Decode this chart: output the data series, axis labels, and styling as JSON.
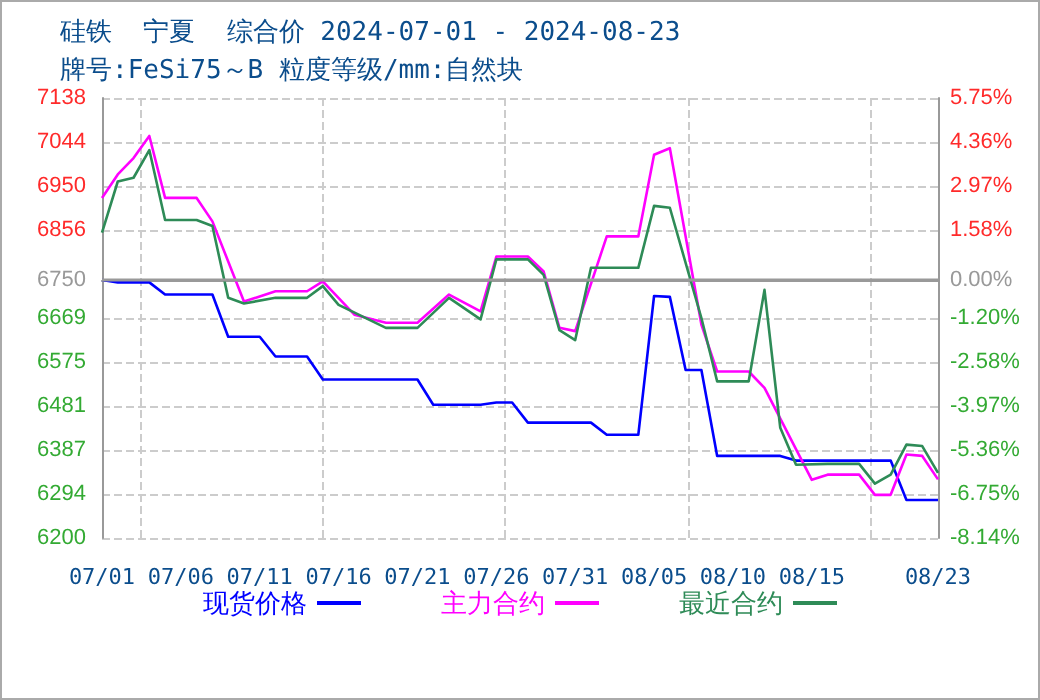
{
  "chart_data": {
    "type": "line",
    "title": "硅铁  宁夏  综合价 2024-07-01 - 2024-08-23",
    "subtitle": "牌号:FeSi75～B 粒度等级/mm:自然块",
    "xlim": [
      "2024-07-01",
      "2024-08-23"
    ],
    "xticks": [
      {
        "value": "2024-07-01",
        "label": "07/01"
      },
      {
        "value": "2024-07-06",
        "label": "07/06"
      },
      {
        "value": "2024-07-11",
        "label": "07/11"
      },
      {
        "value": "2024-07-16",
        "label": "07/16"
      },
      {
        "value": "2024-07-21",
        "label": "07/21"
      },
      {
        "value": "2024-07-26",
        "label": "07/26"
      },
      {
        "value": "2024-07-31",
        "label": "07/31"
      },
      {
        "value": "2024-08-05",
        "label": "08/05"
      },
      {
        "value": "2024-08-10",
        "label": "08/10"
      },
      {
        "value": "2024-08-15",
        "label": "08/15"
      },
      {
        "value": "2024-08-23",
        "label": "08/23"
      }
    ],
    "ylim": [
      6200,
      7138
    ],
    "yticks": [
      7138,
      7044,
      6950,
      6856,
      6750,
      6669,
      6575,
      6481,
      6387,
      6294,
      6200
    ],
    "y2lim": [
      -8.14,
      5.75
    ],
    "y2ticks": [
      {
        "value": 5.75,
        "label": "5.75%"
      },
      {
        "value": 4.36,
        "label": "4.36%"
      },
      {
        "value": 2.97,
        "label": "2.97%"
      },
      {
        "value": 1.58,
        "label": "1.58%"
      },
      {
        "value": 0,
        "label": "0.00%"
      },
      {
        "value": -1.2,
        "label": "-1.20%"
      },
      {
        "value": -2.58,
        "label": "-2.58%"
      },
      {
        "value": -3.97,
        "label": "-3.97%"
      },
      {
        "value": -5.36,
        "label": "-5.36%"
      },
      {
        "value": -6.75,
        "label": "-6.75%"
      },
      {
        "value": -8.14,
        "label": "-8.14%"
      }
    ],
    "ref_lines": [
      {
        "axis": "y",
        "value": 6750,
        "color": "#999999"
      }
    ],
    "grid": true,
    "legend": "bottom",
    "line_style": "solid",
    "series": [
      {
        "name": "现货价格",
        "color": "#0000ff",
        "x": [
          "2024-07-01",
          "2024-07-02",
          "2024-07-04",
          "2024-07-05",
          "2024-07-08",
          "2024-07-09",
          "2024-07-11",
          "2024-07-12",
          "2024-07-14",
          "2024-07-15",
          "2024-07-21",
          "2024-07-22",
          "2024-07-25",
          "2024-07-26",
          "2024-07-27",
          "2024-07-28",
          "2024-08-01",
          "2024-08-02",
          "2024-08-04",
          "2024-08-05",
          "2024-08-06",
          "2024-08-07",
          "2024-08-08",
          "2024-08-09",
          "2024-08-13",
          "2024-08-14",
          "2024-08-20",
          "2024-08-21",
          "2024-08-23"
        ],
        "values": [
          6750,
          6745,
          6745,
          6719,
          6719,
          6629,
          6629,
          6587,
          6587,
          6538,
          6538,
          6484,
          6484,
          6489,
          6489,
          6446,
          6446,
          6420,
          6420,
          6716,
          6714,
          6558,
          6558,
          6375,
          6375,
          6365,
          6365,
          6281,
          6281
        ]
      },
      {
        "name": "主力合约",
        "color": "#ff00ff",
        "x": [
          "2024-07-01",
          "2024-07-02",
          "2024-07-03",
          "2024-07-04",
          "2024-07-05",
          "2024-07-07",
          "2024-07-08",
          "2024-07-10",
          "2024-07-12",
          "2024-07-14",
          "2024-07-15",
          "2024-07-17",
          "2024-07-19",
          "2024-07-21",
          "2024-07-23",
          "2024-07-25",
          "2024-07-26",
          "2024-07-28",
          "2024-07-29",
          "2024-07-30",
          "2024-07-31",
          "2024-08-02",
          "2024-08-04",
          "2024-08-05",
          "2024-08-06",
          "2024-08-08",
          "2024-08-09",
          "2024-08-11",
          "2024-08-12",
          "2024-08-15",
          "2024-08-16",
          "2024-08-18",
          "2024-08-19",
          "2024-08-20",
          "2024-08-21",
          "2024-08-22",
          "2024-08-23"
        ],
        "values": [
          6925,
          6975,
          7010,
          7057,
          6925,
          6925,
          6875,
          6704,
          6726,
          6726,
          6747,
          6676,
          6659,
          6659,
          6719,
          6683,
          6800,
          6800,
          6768,
          6648,
          6641,
          6843,
          6843,
          7017,
          7031,
          6655,
          6555,
          6555,
          6520,
          6324,
          6335,
          6335,
          6292,
          6292,
          6378,
          6375,
          6325
        ]
      },
      {
        "name": "最近合约",
        "color": "#2e8b57",
        "x": [
          "2024-07-01",
          "2024-07-02",
          "2024-07-03",
          "2024-07-04",
          "2024-07-05",
          "2024-07-07",
          "2024-07-08",
          "2024-07-09",
          "2024-07-10",
          "2024-07-12",
          "2024-07-14",
          "2024-07-15",
          "2024-07-16",
          "2024-07-19",
          "2024-07-21",
          "2024-07-23",
          "2024-07-25",
          "2024-07-26",
          "2024-07-28",
          "2024-07-29",
          "2024-07-30",
          "2024-07-31",
          "2024-08-01",
          "2024-08-04",
          "2024-08-05",
          "2024-08-06",
          "2024-08-08",
          "2024-08-09",
          "2024-08-11",
          "2024-08-12",
          "2024-08-13",
          "2024-08-14",
          "2024-08-16",
          "2024-08-18",
          "2024-08-19",
          "2024-08-20",
          "2024-08-21",
          "2024-08-22",
          "2024-08-23"
        ],
        "values": [
          6851,
          6960,
          6968,
          7027,
          6878,
          6878,
          6865,
          6712,
          6700,
          6712,
          6712,
          6737,
          6697,
          6648,
          6648,
          6712,
          6666,
          6794,
          6794,
          6761,
          6643,
          6622,
          6776,
          6776,
          6908,
          6904,
          6669,
          6534,
          6534,
          6729,
          6435,
          6356,
          6358,
          6358,
          6316,
          6335,
          6399,
          6396,
          6339
        ]
      }
    ]
  }
}
